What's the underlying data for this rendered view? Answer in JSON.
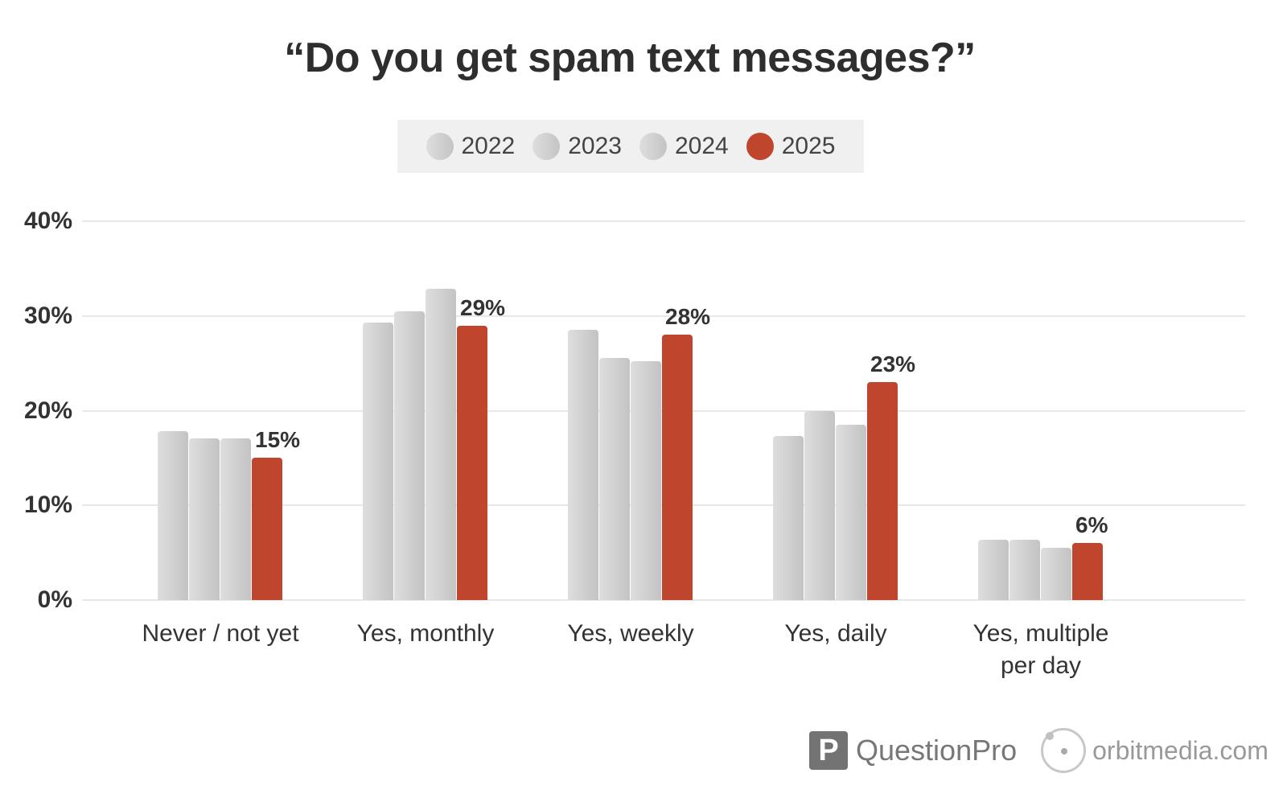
{
  "title": "“Do you get spam text messages?”",
  "legend": [
    {
      "label": "2022",
      "color": "#d0d0d0"
    },
    {
      "label": "2023",
      "color": "#d0d0d0"
    },
    {
      "label": "2024",
      "color": "#d0d0d0"
    },
    {
      "label": "2025",
      "color": "#bf462d"
    }
  ],
  "yaxis": {
    "ticks": [
      "0%",
      "10%",
      "20%",
      "30%",
      "40%"
    ]
  },
  "footer": {
    "questionpro_logo": "P",
    "questionpro": "QuestionPro",
    "orbitmedia": "orbitmedia.com"
  },
  "chart_data": {
    "type": "bar",
    "title": "“Do you get spam text messages?”",
    "categories": [
      "Never / not yet",
      "Yes, monthly",
      "Yes, weekly",
      "Yes, daily",
      "Yes, multiple per day"
    ],
    "series": [
      {
        "name": "2022",
        "values": [
          17.8,
          29.3,
          28.5,
          17.3,
          6.4
        ]
      },
      {
        "name": "2023",
        "values": [
          17.1,
          30.5,
          25.6,
          20.0,
          6.4
        ]
      },
      {
        "name": "2024",
        "values": [
          17.1,
          32.9,
          25.2,
          18.5,
          5.5
        ]
      },
      {
        "name": "2025",
        "values": [
          15,
          29,
          28,
          23,
          6
        ]
      }
    ],
    "data_labels": {
      "2025": [
        "15%",
        "29%",
        "28%",
        "23%",
        "6%"
      ]
    },
    "xlabel": "",
    "ylabel": "",
    "ylim": [
      0,
      40
    ],
    "yticks": [
      0,
      10,
      20,
      30,
      40
    ],
    "grid": true,
    "legend_position": "top"
  }
}
